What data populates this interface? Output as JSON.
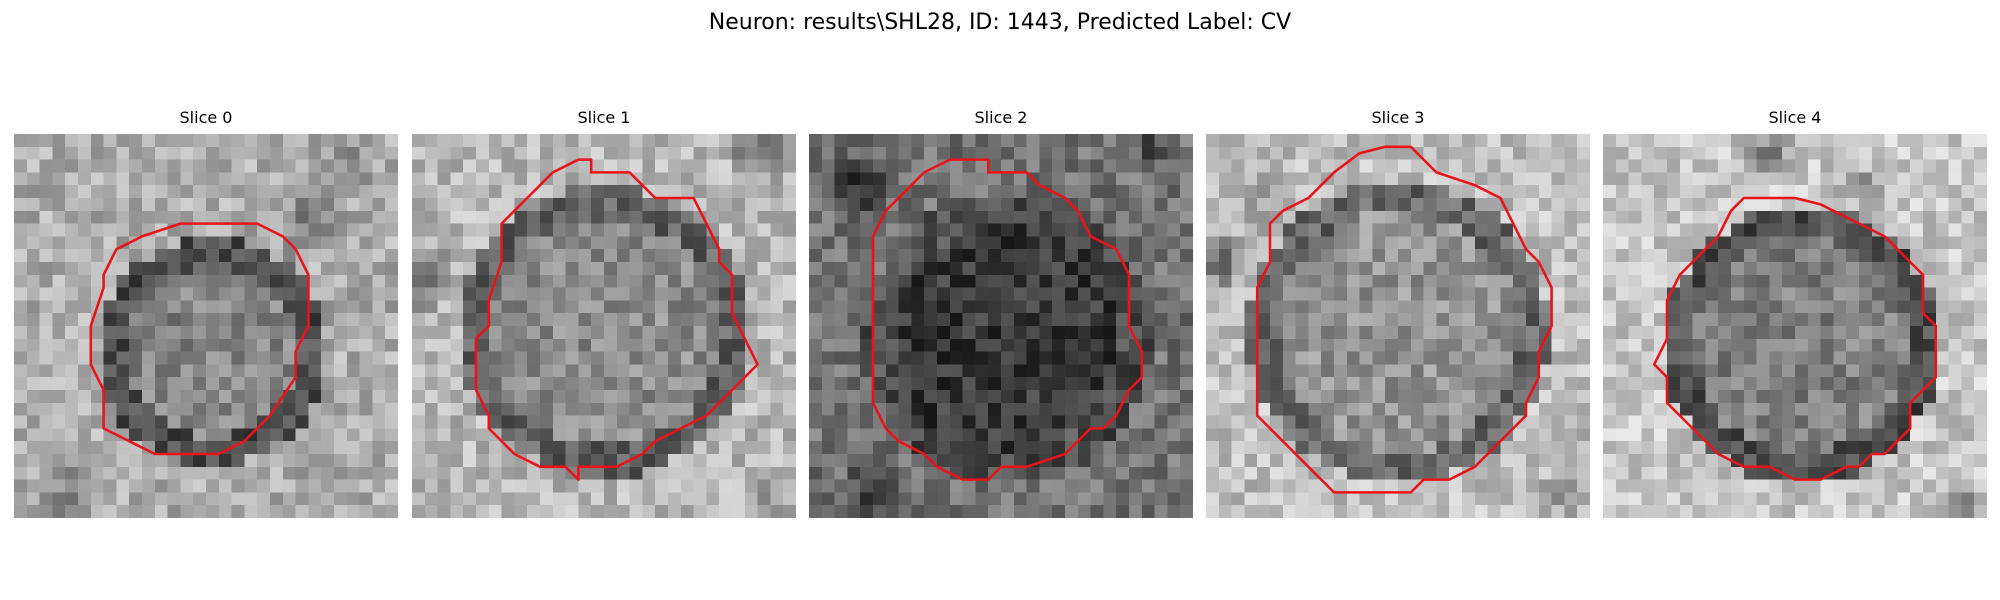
{
  "figure": {
    "title": "Neuron: results\\SHL28, ID: 1443, Predicted Label: CV"
  },
  "contour_color": "#e8141a",
  "panels": [
    {
      "title": "Slice 0"
    },
    {
      "title": "Slice 1"
    },
    {
      "title": "Slice 2"
    },
    {
      "title": "Slice 3"
    },
    {
      "title": "Slice 4"
    }
  ]
}
